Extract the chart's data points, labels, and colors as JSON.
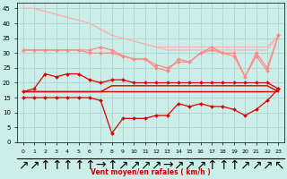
{
  "xlabel": "Vent moyen/en rafales ( km/h )",
  "x": [
    0,
    1,
    2,
    3,
    4,
    5,
    6,
    7,
    8,
    9,
    10,
    11,
    12,
    13,
    14,
    15,
    16,
    17,
    18,
    19,
    20,
    21,
    22,
    23
  ],
  "series": [
    {
      "color": "#ffb0b0",
      "linewidth": 0.8,
      "marker": null,
      "y": [
        45,
        45,
        44,
        43,
        42,
        41,
        40,
        38,
        36,
        35,
        34,
        33,
        32,
        31,
        31,
        31,
        31,
        31,
        31,
        31,
        31,
        31,
        31,
        36
      ]
    },
    {
      "color": "#ffb0b0",
      "linewidth": 0.8,
      "marker": null,
      "y": [
        45,
        45,
        44,
        43,
        42,
        41,
        40,
        38,
        36,
        35,
        34,
        33,
        32,
        32,
        32,
        32,
        32,
        32,
        32,
        32,
        32,
        32,
        32,
        36
      ]
    },
    {
      "color": "#ff8888",
      "linewidth": 0.9,
      "marker": "D",
      "markersize": 2.0,
      "y": [
        31,
        31,
        31,
        31,
        31,
        31,
        31,
        32,
        31,
        29,
        28,
        28,
        25,
        24,
        28,
        27,
        30,
        32,
        30,
        30,
        22,
        30,
        25,
        36
      ]
    },
    {
      "color": "#ff8888",
      "linewidth": 0.9,
      "marker": "D",
      "markersize": 2.0,
      "y": [
        31,
        31,
        31,
        31,
        31,
        31,
        30,
        30,
        30,
        29,
        28,
        28,
        26,
        25,
        27,
        27,
        30,
        31,
        30,
        29,
        22,
        29,
        24,
        36
      ]
    },
    {
      "color": "#dd0000",
      "linewidth": 1.0,
      "marker": null,
      "y": [
        17,
        17,
        17,
        17,
        17,
        17,
        17,
        17,
        17,
        17,
        17,
        17,
        17,
        17,
        17,
        17,
        17,
        17,
        17,
        17,
        17,
        17,
        17,
        17
      ]
    },
    {
      "color": "#dd0000",
      "linewidth": 1.0,
      "marker": null,
      "y": [
        17,
        17,
        17,
        17,
        17,
        17,
        17,
        17,
        19,
        19,
        19,
        19,
        19,
        19,
        19,
        19,
        19,
        19,
        19,
        19,
        19,
        19,
        19,
        17
      ]
    },
    {
      "color": "#dd0000",
      "linewidth": 0.9,
      "marker": "D",
      "markersize": 2.0,
      "y": [
        17,
        18,
        23,
        22,
        23,
        23,
        21,
        20,
        21,
        21,
        20,
        20,
        20,
        20,
        20,
        20,
        20,
        20,
        20,
        20,
        20,
        20,
        20,
        18
      ]
    },
    {
      "color": "#dd0000",
      "linewidth": 0.9,
      "marker": "D",
      "markersize": 2.0,
      "y": [
        15,
        15,
        15,
        15,
        15,
        15,
        15,
        14,
        3,
        8,
        8,
        8,
        9,
        9,
        13,
        12,
        13,
        12,
        12,
        11,
        9,
        11,
        14,
        18
      ]
    }
  ],
  "ylim": [
    0,
    47
  ],
  "yticks": [
    0,
    5,
    10,
    15,
    20,
    25,
    30,
    35,
    40,
    45
  ],
  "xlim": [
    -0.5,
    23.5
  ],
  "background_color": "#cceee8",
  "grid_color": "#aacccc",
  "arrow_symbols": [
    "↗",
    "↗",
    "↑",
    "↑",
    "↑",
    "↑",
    "↑",
    "→",
    "↑",
    "↗",
    "↗",
    "↗",
    "↗",
    "→",
    "↗",
    "↗",
    "↗",
    "↑",
    "↑",
    "↑",
    "↗",
    "↗",
    "↗",
    "↖"
  ]
}
